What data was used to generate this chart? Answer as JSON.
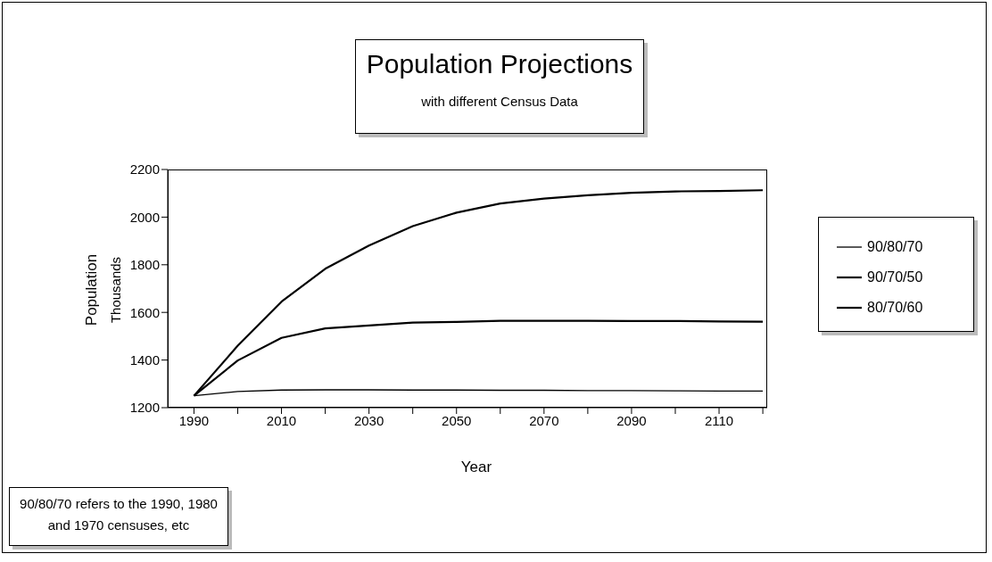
{
  "chart_data": {
    "type": "line",
    "title": "Population Projections",
    "subtitle": "with different Census Data",
    "xlabel": "Year",
    "ylabel": "Population\nThousands",
    "annotations": [
      "90/80/70 refers to the 1990, 1980 and 1970 censuses, etc"
    ],
    "x": [
      1990,
      2000,
      2010,
      2020,
      2030,
      2040,
      2050,
      2060,
      2070,
      2080,
      2090,
      2100,
      2110,
      2120
    ],
    "series": [
      {
        "name": "90/80/70",
        "color": "#000000",
        "values": [
          1250,
          1268,
          1274,
          1275,
          1275,
          1274,
          1274,
          1273,
          1273,
          1272,
          1272,
          1271,
          1270,
          1270
        ]
      },
      {
        "name": "90/70/50",
        "color": "#000000",
        "values": [
          1250,
          1460,
          1645,
          1783,
          1881,
          1962,
          2019,
          2057,
          2078,
          2092,
          2102,
          2108,
          2110,
          2113
        ]
      },
      {
        "name": "80/70/60",
        "color": "#000000",
        "values": [
          1250,
          1398,
          1493,
          1533,
          1545,
          1557,
          1560,
          1565,
          1565,
          1565,
          1564,
          1564,
          1562,
          1561
        ]
      }
    ],
    "xlim": [
      1984,
      2121
    ],
    "ylim": [
      1200,
      2200
    ],
    "xticks": [
      1990,
      {
        "value": 2000,
        "label": null
      },
      2010,
      {
        "value": 2020,
        "label": null
      },
      2030,
      {
        "value": 2040,
        "label": null
      },
      2050,
      {
        "value": 2060,
        "label": null
      },
      2070,
      {
        "value": 2080,
        "label": null
      },
      2090,
      {
        "value": 2100,
        "label": null
      },
      2110,
      {
        "value": 2120,
        "label": null
      }
    ],
    "yticks": [
      1200,
      1400,
      1600,
      1800,
      2000,
      2200
    ],
    "grid": false,
    "legend": "right",
    "marker": "none",
    "line_style": "solid"
  }
}
